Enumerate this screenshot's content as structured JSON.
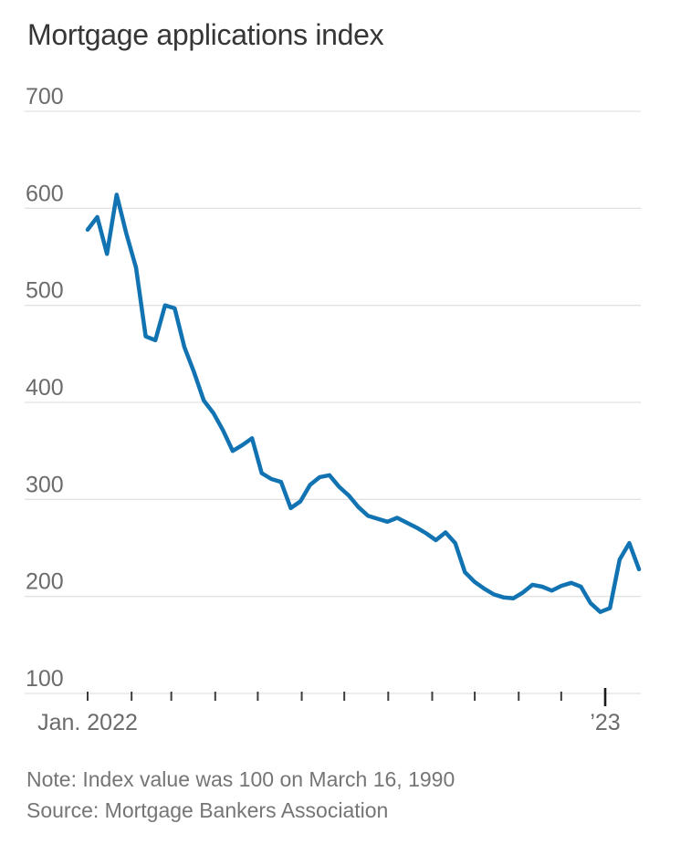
{
  "page": {
    "background": "#ffffff"
  },
  "chart": {
    "title": "Mortgage applications index",
    "note": "Note: Index value was 100 on March 16, 1990",
    "source": "Source: Mortgage Bankers Association"
  },
  "chart_data": {
    "type": "line",
    "title": "Mortgage applications index",
    "xlabel": "",
    "ylabel": "",
    "ylim": [
      100,
      700
    ],
    "y_ticks": [
      700,
      600,
      500,
      400,
      300,
      200,
      100
    ],
    "grid": true,
    "legend": "none",
    "frequency": "weekly",
    "x_start_label": "Jan. 2022",
    "x_end_label": "’23",
    "x_month_tick_day_offsets": [
      0,
      31,
      59,
      90,
      120,
      151,
      181,
      212,
      243,
      273,
      304,
      334,
      365
    ],
    "note": "Note: Index value was 100 on March 16, 1990",
    "source": "Source: Mortgage Bankers Association",
    "series": [
      {
        "name": "Mortgage applications index",
        "values": [
          578,
          591,
          553,
          614,
          574,
          539,
          468,
          464,
          500,
          497,
          457,
          431,
          402,
          389,
          371,
          350,
          356,
          363,
          327,
          321,
          318,
          291,
          298,
          315,
          323,
          325,
          313,
          304,
          292,
          283,
          280,
          277,
          281,
          276,
          271,
          265,
          258,
          266,
          255,
          225,
          215,
          208,
          202,
          199,
          198,
          204,
          212,
          210,
          206,
          211,
          214,
          210,
          193,
          184,
          188,
          238,
          255,
          228
        ]
      }
    ],
    "colors": {
      "line": "#1273b2",
      "grid": "#e2e2e2",
      "axis_text": "#6b6b6b",
      "tick": "#3d3d3d",
      "major_tick": "#1a1a1a",
      "title_text": "#363636",
      "note_text": "#757575"
    }
  }
}
